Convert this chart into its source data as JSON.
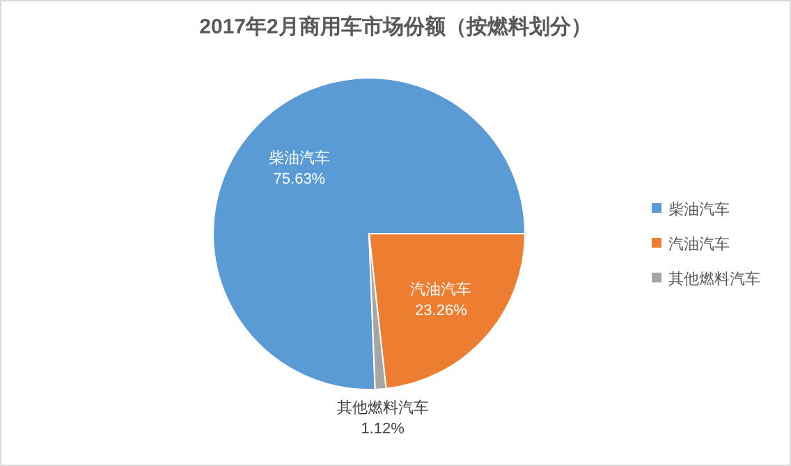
{
  "chart_data": {
    "type": "pie",
    "title": "2017年2月商用车市场份额（按燃料划分）",
    "categories": [
      "柴油汽车",
      "汽油汽车",
      "其他燃料汽车"
    ],
    "values": [
      75.63,
      23.26,
      1.12
    ],
    "colors": [
      "#5b9bd5",
      "#ed7d31",
      "#a5a5a5"
    ],
    "value_labels": [
      "75.63%",
      "23.26%",
      "1.12%"
    ],
    "legend": "right"
  }
}
